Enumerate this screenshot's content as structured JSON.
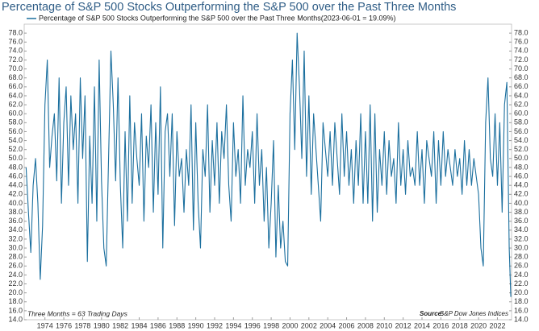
{
  "chart_data": {
    "type": "line",
    "title": "Percentage of S&P 500 Stocks Outperforming the S&P 500 over the Past Three Months",
    "note": "Three Months = 63 Trading Days",
    "source_label": "Source:",
    "source": "S&P Dow Jones Indices",
    "x": [
      1972,
      1972.25,
      1972.5,
      1972.75,
      1973,
      1973.25,
      1973.5,
      1973.75,
      1974,
      1974.25,
      1974.5,
      1974.75,
      1975,
      1975.25,
      1975.5,
      1975.75,
      1976,
      1976.25,
      1976.5,
      1976.75,
      1977,
      1977.25,
      1977.5,
      1977.75,
      1978,
      1978.25,
      1978.5,
      1978.75,
      1979,
      1979.25,
      1979.5,
      1979.75,
      1980,
      1980.25,
      1980.5,
      1980.75,
      1981,
      1981.25,
      1981.5,
      1981.75,
      1982,
      1982.25,
      1982.5,
      1982.75,
      1983,
      1983.25,
      1983.5,
      1983.75,
      1984,
      1984.25,
      1984.5,
      1984.75,
      1985,
      1985.25,
      1985.5,
      1985.75,
      1986,
      1986.25,
      1986.5,
      1986.75,
      1987,
      1987.25,
      1987.5,
      1987.75,
      1988,
      1988.25,
      1988.5,
      1988.75,
      1989,
      1989.25,
      1989.5,
      1989.75,
      1990,
      1990.25,
      1990.5,
      1990.75,
      1991,
      1991.25,
      1991.5,
      1991.75,
      1992,
      1992.25,
      1992.5,
      1992.75,
      1993,
      1993.25,
      1993.5,
      1993.75,
      1994,
      1994.25,
      1994.5,
      1994.75,
      1995,
      1995.25,
      1995.5,
      1995.75,
      1996,
      1996.25,
      1996.5,
      1996.75,
      1997,
      1997.25,
      1997.5,
      1997.75,
      1998,
      1998.25,
      1998.5,
      1998.75,
      1999,
      1999.25,
      1999.5,
      1999.75,
      2000,
      2000.25,
      2000.5,
      2000.75,
      2001,
      2001.25,
      2001.5,
      2001.75,
      2002,
      2002.25,
      2002.5,
      2002.75,
      2003,
      2003.25,
      2003.5,
      2003.75,
      2004,
      2004.25,
      2004.5,
      2004.75,
      2005,
      2005.25,
      2005.5,
      2005.75,
      2006,
      2006.25,
      2006.5,
      2006.75,
      2007,
      2007.25,
      2007.5,
      2007.75,
      2008,
      2008.25,
      2008.5,
      2008.75,
      2009,
      2009.25,
      2009.5,
      2009.75,
      2010,
      2010.25,
      2010.5,
      2010.75,
      2011,
      2011.25,
      2011.5,
      2011.75,
      2012,
      2012.25,
      2012.5,
      2012.75,
      2013,
      2013.25,
      2013.5,
      2013.75,
      2014,
      2014.25,
      2014.5,
      2014.75,
      2015,
      2015.25,
      2015.5,
      2015.75,
      2016,
      2016.25,
      2016.5,
      2016.75,
      2017,
      2017.25,
      2017.5,
      2017.75,
      2018,
      2018.25,
      2018.5,
      2018.75,
      2019,
      2019.25,
      2019.5,
      2019.75,
      2020,
      2020.25,
      2020.5,
      2020.75,
      2021,
      2021.25,
      2021.5,
      2021.75,
      2022,
      2022.25,
      2022.5,
      2022.75,
      2023,
      2023.25,
      2023.42
    ],
    "series": [
      {
        "name": "Percentage of S&P 500 Stocks Outperforming the S&P 500 over the Past Three Months(2023-06-01 = 19.09%)",
        "color": "#1b6f9e",
        "values": [
          48,
          38,
          29,
          44,
          50,
          40,
          23,
          35,
          62,
          72,
          48,
          55,
          60,
          45,
          68,
          40,
          58,
          66,
          44,
          64,
          52,
          60,
          40,
          68,
          50,
          64,
          27,
          55,
          40,
          66,
          36,
          72,
          45,
          30,
          26,
          50,
          74,
          62,
          45,
          68,
          44,
          30,
          56,
          36,
          64,
          40,
          58,
          50,
          44,
          60,
          36,
          55,
          48,
          62,
          38,
          58,
          42,
          66,
          30,
          56,
          60,
          46,
          60,
          35,
          56,
          46,
          50,
          38,
          52,
          44,
          62,
          34,
          58,
          40,
          30,
          52,
          46,
          62,
          38,
          54,
          44,
          58,
          40,
          56,
          50,
          62,
          44,
          36,
          58,
          46,
          52,
          40,
          64,
          44,
          52,
          48,
          56,
          40,
          60,
          44,
          52,
          36,
          48,
          30,
          40,
          54,
          28,
          44,
          30,
          36,
          27,
          26,
          60,
          72,
          52,
          78,
          66,
          50,
          74,
          46,
          64,
          42,
          60,
          52,
          44,
          36,
          58,
          52,
          46,
          56,
          44,
          58,
          50,
          42,
          60,
          46,
          56,
          44,
          52,
          40,
          54,
          44,
          60,
          40,
          56,
          40,
          62,
          36,
          60,
          38,
          52,
          44,
          56,
          42,
          54,
          46,
          50,
          40,
          58,
          44,
          52,
          42,
          54,
          46,
          48,
          44,
          56,
          44,
          52,
          40,
          54,
          50,
          46,
          56,
          40,
          54,
          44,
          56,
          46,
          52,
          48,
          44,
          52,
          46,
          50,
          42,
          54,
          44,
          52,
          44,
          50,
          46,
          42,
          30,
          26,
          58,
          68,
          50,
          46,
          60,
          44,
          58,
          38,
          62,
          67,
          30,
          19.09
        ]
      }
    ],
    "xlim": [
      1971.8,
      2023.5
    ],
    "xticks": [
      1974,
      1976,
      1978,
      1980,
      1982,
      1984,
      1986,
      1988,
      1990,
      1992,
      1994,
      1996,
      1998,
      2000,
      2002,
      2004,
      2006,
      2008,
      2010,
      2012,
      2014,
      2016,
      2018,
      2020,
      2022
    ],
    "ylim": [
      14,
      80
    ],
    "yticks": [
      {
        "value": 14,
        "label": "14.0"
      },
      {
        "value": 16,
        "label": "16.0"
      },
      {
        "value": 18,
        "label": "18.0"
      },
      {
        "value": 20,
        "label": "20.0"
      },
      {
        "value": 22,
        "label": "22.0"
      },
      {
        "value": 24,
        "label": "24.0"
      },
      {
        "value": 26,
        "label": "26.0"
      },
      {
        "value": 28,
        "label": "28.0"
      },
      {
        "value": 30,
        "label": "30.0"
      },
      {
        "value": 32,
        "label": "32.0"
      },
      {
        "value": 34,
        "label": "34.0"
      },
      {
        "value": 36,
        "label": "36.0"
      },
      {
        "value": 38,
        "label": "38.0"
      },
      {
        "value": 40,
        "label": "40.0"
      },
      {
        "value": 42,
        "label": "42.0"
      },
      {
        "value": 44,
        "label": "44.0"
      },
      {
        "value": 46,
        "label": "46.0"
      },
      {
        "value": 48,
        "label": "48.0"
      },
      {
        "value": 50,
        "label": "50.0"
      },
      {
        "value": 52,
        "label": "52.0"
      },
      {
        "value": 54,
        "label": "54.0"
      },
      {
        "value": 56,
        "label": "56.0"
      },
      {
        "value": 58,
        "label": "58.0"
      },
      {
        "value": 60,
        "label": "60.0"
      },
      {
        "value": 62,
        "label": "62.0"
      },
      {
        "value": 64,
        "label": "64.0"
      },
      {
        "value": 66,
        "label": "66.0"
      },
      {
        "value": 68,
        "label": "68.0"
      },
      {
        "value": 70,
        "label": "70.0"
      },
      {
        "value": 72,
        "label": "72.0"
      },
      {
        "value": 74,
        "label": "74.0"
      },
      {
        "value": 76,
        "label": "76.0"
      },
      {
        "value": 78,
        "label": "78.0"
      }
    ],
    "y2lim": [
      14,
      80
    ],
    "y2ticks": [
      {
        "value": 14,
        "label": "14.0"
      },
      {
        "value": 16,
        "label": "16.0"
      },
      {
        "value": 18,
        "label": "18.0"
      },
      {
        "value": 20,
        "label": "20.0"
      },
      {
        "value": 22,
        "label": "22.0"
      },
      {
        "value": 24,
        "label": "24.0"
      },
      {
        "value": 26,
        "label": "26.0"
      },
      {
        "value": 28,
        "label": "28.0"
      },
      {
        "value": 30,
        "label": "30.0"
      },
      {
        "value": 32,
        "label": "32.0"
      },
      {
        "value": 34,
        "label": "34.0"
      },
      {
        "value": 36,
        "label": "36.0"
      },
      {
        "value": 38,
        "label": "38.0"
      },
      {
        "value": 40,
        "label": "40.0"
      },
      {
        "value": 42,
        "label": "42.0"
      },
      {
        "value": 44,
        "label": "44.0"
      },
      {
        "value": 46,
        "label": "46.0"
      },
      {
        "value": 48,
        "label": "48.0"
      },
      {
        "value": 50,
        "label": "50.0"
      },
      {
        "value": 52,
        "label": "52.0"
      },
      {
        "value": 54,
        "label": "54.0"
      },
      {
        "value": 56,
        "label": "56.0"
      },
      {
        "value": 58,
        "label": "58.0"
      },
      {
        "value": 60,
        "label": "60.0"
      },
      {
        "value": 62,
        "label": "62.0"
      },
      {
        "value": 64,
        "label": "64.0"
      },
      {
        "value": 66,
        "label": "66.0"
      },
      {
        "value": 68,
        "label": "68.0"
      },
      {
        "value": 70,
        "label": "70.0"
      },
      {
        "value": 72,
        "label": "72.0"
      },
      {
        "value": 74,
        "label": "74.0"
      },
      {
        "value": 76,
        "label": "76.0"
      },
      {
        "value": 78,
        "label": "78.0"
      }
    ],
    "grid": false
  }
}
